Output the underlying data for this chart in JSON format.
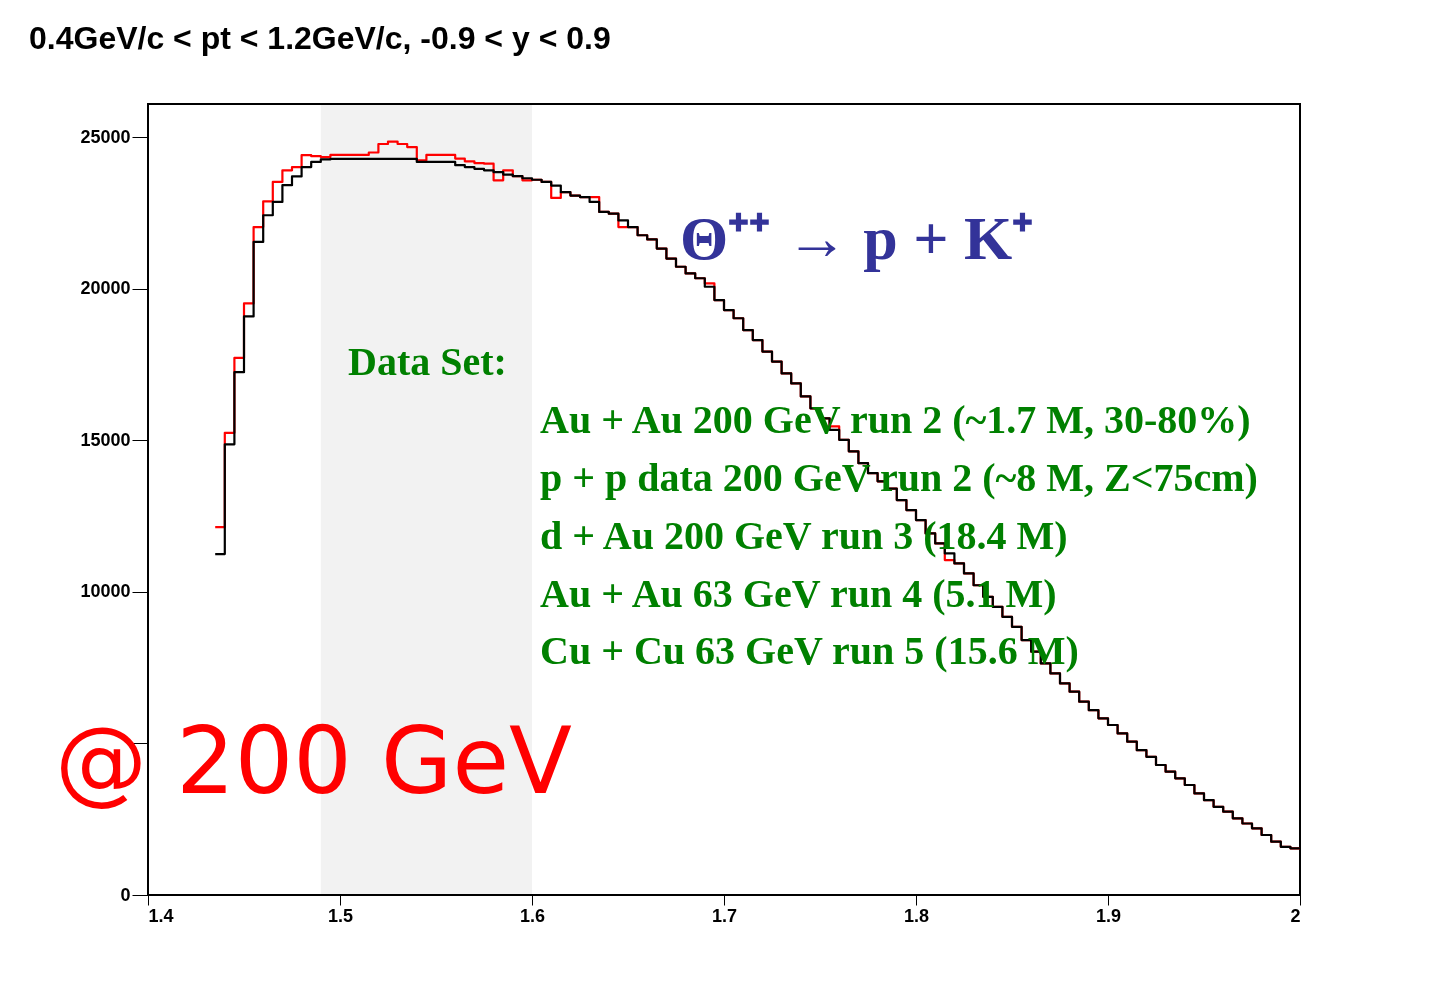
{
  "chart_data": {
    "type": "histogram",
    "title": "0.4GeV/c < pt < 1.2GeV/c, -0.9 < y < 0.9",
    "bins": [
      1.435,
      1.44,
      1.445,
      1.45,
      1.455,
      1.46,
      1.465,
      1.47,
      1.475,
      1.48,
      1.485,
      1.49,
      1.495,
      1.5,
      1.505,
      1.51,
      1.515,
      1.52,
      1.525,
      1.53,
      1.535,
      1.54,
      1.545,
      1.55,
      1.555,
      1.56,
      1.565,
      1.57,
      1.575,
      1.58,
      1.585,
      1.59,
      1.595,
      1.6,
      1.605,
      1.61,
      1.615,
      1.62,
      1.625,
      1.63,
      1.635,
      1.64,
      1.645,
      1.65,
      1.655,
      1.66,
      1.665,
      1.67,
      1.675,
      1.68,
      1.685,
      1.69,
      1.695,
      1.7,
      1.705,
      1.71,
      1.715,
      1.72,
      1.725,
      1.73,
      1.735,
      1.74,
      1.745,
      1.75,
      1.755,
      1.76,
      1.765,
      1.77,
      1.775,
      1.78,
      1.785,
      1.79,
      1.795,
      1.8,
      1.805,
      1.81,
      1.815,
      1.82,
      1.825,
      1.83,
      1.835,
      1.84,
      1.845,
      1.85,
      1.855,
      1.86,
      1.865,
      1.87,
      1.875,
      1.88,
      1.885,
      1.89,
      1.895,
      1.9,
      1.905,
      1.91,
      1.915,
      1.92,
      1.925,
      1.93,
      1.935,
      1.94,
      1.945,
      1.95,
      1.955,
      1.96,
      1.965,
      1.97,
      1.975,
      1.98,
      1.985,
      1.99,
      1.995,
      2.0
    ],
    "series": [
      {
        "color": "#ff0000",
        "values": [
          12140,
          15250,
          17720,
          19520,
          22040,
          22890,
          23530,
          23910,
          24020,
          24410,
          24380,
          24350,
          24420,
          24420,
          24420,
          24420,
          24500,
          24780,
          24860,
          24780,
          24680,
          24240,
          24420,
          24420,
          24420,
          24300,
          24210,
          24150,
          24130,
          23580,
          23910,
          23720,
          23580,
          23600,
          23530,
          23000,
          23190,
          23080,
          23030,
          23030,
          22540,
          22480,
          22040,
          22040,
          21770,
          21630,
          21330,
          21000,
          20730,
          20510,
          20350,
          20180,
          19630,
          19300,
          19030,
          18640,
          18310,
          17930,
          17600,
          17210,
          16880,
          16450,
          16060,
          15730,
          15460,
          15020,
          14640,
          14250,
          13920,
          13650,
          13410,
          13030,
          12700,
          12370,
          11930,
          11600,
          11050,
          10940,
          10610,
          10220,
          9840,
          9510,
          9180,
          8850,
          8410,
          8030,
          7640,
          7310,
          6980,
          6710,
          6380,
          6100,
          5830,
          5610,
          5330,
          5060,
          4780,
          4560,
          4290,
          4070,
          3850,
          3630,
          3350,
          3130,
          2910,
          2750,
          2530,
          2360,
          2200,
          1980,
          1760,
          1590,
          1540
        ]
      },
      {
        "color": "#000000",
        "values": [
          11250,
          14870,
          17250,
          19090,
          21550,
          22430,
          22870,
          23420,
          23710,
          24020,
          24190,
          24270,
          24290,
          24290,
          24290,
          24290,
          24290,
          24290,
          24290,
          24290,
          24290,
          24190,
          24190,
          24190,
          24190,
          24080,
          24020,
          23960,
          23910,
          23850,
          23770,
          23720,
          23650,
          23600,
          23530,
          23410,
          23190,
          23080,
          23030,
          22870,
          22540,
          22480,
          22260,
          22040,
          21770,
          21630,
          21330,
          21000,
          20730,
          20510,
          20350,
          20070,
          19630,
          19300,
          19030,
          18640,
          18310,
          17930,
          17600,
          17210,
          16880,
          16450,
          16060,
          15730,
          15350,
          15020,
          14640,
          14250,
          13920,
          13650,
          13410,
          13030,
          12700,
          12370,
          11930,
          11600,
          11270,
          10940,
          10610,
          10220,
          9840,
          9510,
          9180,
          8850,
          8410,
          8030,
          7640,
          7310,
          6980,
          6710,
          6380,
          6100,
          5830,
          5610,
          5330,
          5060,
          4780,
          4560,
          4290,
          4070,
          3850,
          3630,
          3350,
          3130,
          2910,
          2750,
          2530,
          2360,
          2200,
          1980,
          1760,
          1590,
          1540
        ]
      }
    ],
    "xlim": [
      1.4,
      2.0
    ],
    "xticks": [
      1.4,
      1.5,
      1.6,
      1.7,
      1.8,
      1.9,
      {
        "value": 2.0,
        "label": "2"
      }
    ],
    "ylim": [
      0,
      26100
    ],
    "yticks": [
      0,
      {
        "value": 5000,
        "label": null
      },
      10000,
      15000,
      20000,
      25000
    ],
    "bands": [
      {
        "axis": "x",
        "from": 1.49,
        "to": 1.6,
        "color": "#000000"
      }
    ],
    "grid": false,
    "annotations": [
      "Θ⁺⁺ → p + K⁺",
      "Data Set:",
      "Au + Au 200 GeV run 2 (~1.7 M, 30-80%)",
      "p + p data 200 GeV run 2 (~8 M, Z<75cm)",
      "d + Au 200 GeV run 3  (18.4 M)",
      "Au + Au 63 GeV run 4  (5.1 M)",
      "Cu + Cu 63 GeV run 5 (15.6 M)",
      "@ 200 GeV"
    ]
  }
}
